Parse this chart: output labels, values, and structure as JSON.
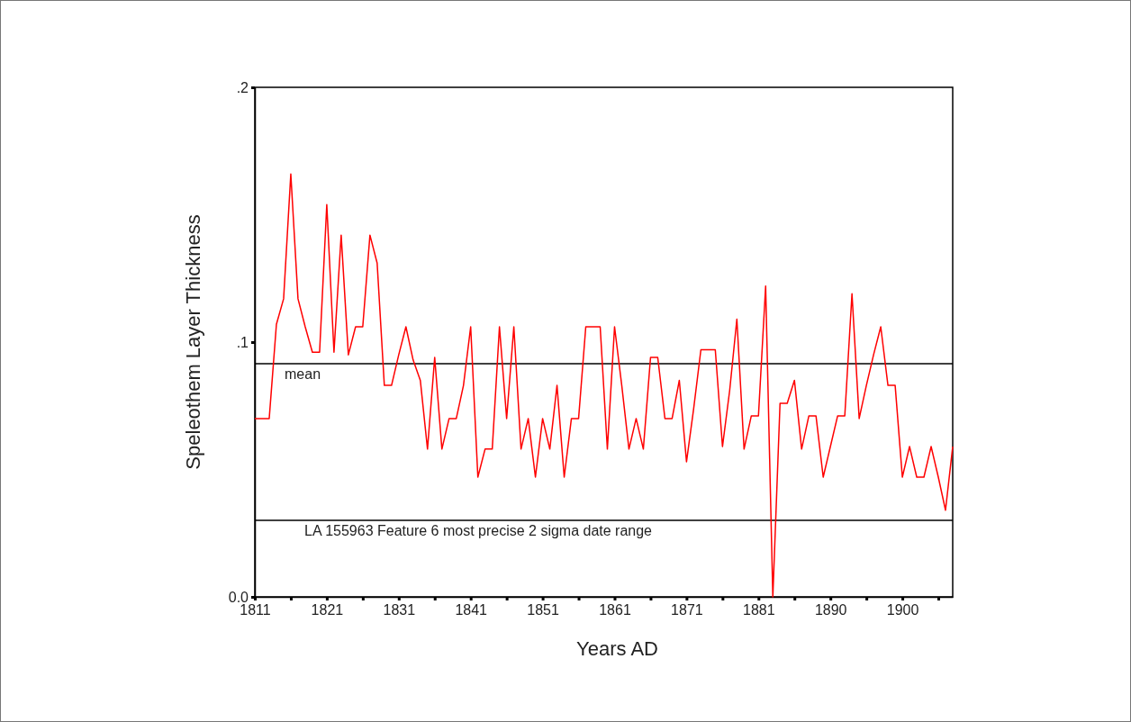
{
  "chart_data": {
    "type": "line",
    "xlabel": "Years AD",
    "ylabel": "Speleothem Layer Thickness",
    "categories": [
      "1811",
      null,
      null,
      null,
      null,
      null,
      null,
      null,
      null,
      null,
      "1821",
      null,
      null,
      null,
      null,
      null,
      null,
      null,
      null,
      null,
      "1831",
      null,
      null,
      null,
      null,
      null,
      null,
      null,
      null,
      null,
      "1841",
      null,
      null,
      null,
      null,
      null,
      null,
      null,
      null,
      null,
      "1851",
      null,
      null,
      null,
      null,
      null,
      null,
      null,
      null,
      null,
      "1861",
      null,
      null,
      null,
      null,
      null,
      null,
      null,
      null,
      null,
      "1871",
      null,
      null,
      null,
      null,
      null,
      null,
      null,
      null,
      null,
      "1881",
      null,
      null,
      null,
      null,
      null,
      null,
      null,
      null,
      null,
      "1890",
      null,
      null,
      null,
      null,
      null,
      null,
      null,
      null,
      null,
      "1900",
      null,
      null,
      null,
      null,
      null,
      null,
      null
    ],
    "series": [
      {
        "color": "#ff0000",
        "values": [
          0.07,
          0.07,
          0.07,
          0.107,
          0.117,
          0.166,
          0.117,
          0.106,
          0.096,
          0.096,
          0.154,
          0.096,
          0.142,
          0.095,
          0.106,
          0.106,
          0.142,
          0.131,
          0.083,
          0.083,
          0.095,
          0.106,
          0.093,
          0.085,
          0.058,
          0.094,
          0.058,
          0.07,
          0.07,
          0.083,
          0.106,
          0.047,
          0.058,
          0.058,
          0.106,
          0.07,
          0.106,
          0.058,
          0.07,
          0.047,
          0.07,
          0.058,
          0.083,
          0.047,
          0.07,
          0.07,
          0.106,
          0.106,
          0.106,
          0.058,
          0.106,
          0.083,
          0.058,
          0.07,
          0.058,
          0.094,
          0.094,
          0.07,
          0.07,
          0.085,
          0.053,
          0.074,
          0.097,
          0.097,
          0.097,
          0.059,
          0.081,
          0.109,
          0.058,
          0.071,
          0.071,
          0.122,
          0.0,
          0.076,
          0.076,
          0.085,
          0.058,
          0.071,
          0.071,
          0.047,
          0.059,
          0.071,
          0.071,
          0.119,
          0.07,
          0.083,
          0.095,
          0.106,
          0.083,
          0.083,
          0.047,
          0.059,
          0.047,
          0.047,
          0.059,
          0.047,
          0.034,
          0.059
        ]
      }
    ],
    "ylim": [
      0,
      0.2
    ],
    "yticks": [
      {
        "value": 0,
        "label": "0.0"
      },
      {
        "value": 0.1,
        "label": ".1"
      },
      {
        "value": 0.2,
        "label": ".2"
      }
    ],
    "ref_lines": [
      {
        "axis": "y",
        "value": 0.0915,
        "label": "mean",
        "color": "#000000"
      },
      {
        "axis": "y",
        "value": 0.03,
        "label": "LA 155963 Feature 6 most precise 2 sigma date range",
        "color": "#000000"
      }
    ],
    "marker": "none",
    "line_style": "solid"
  }
}
